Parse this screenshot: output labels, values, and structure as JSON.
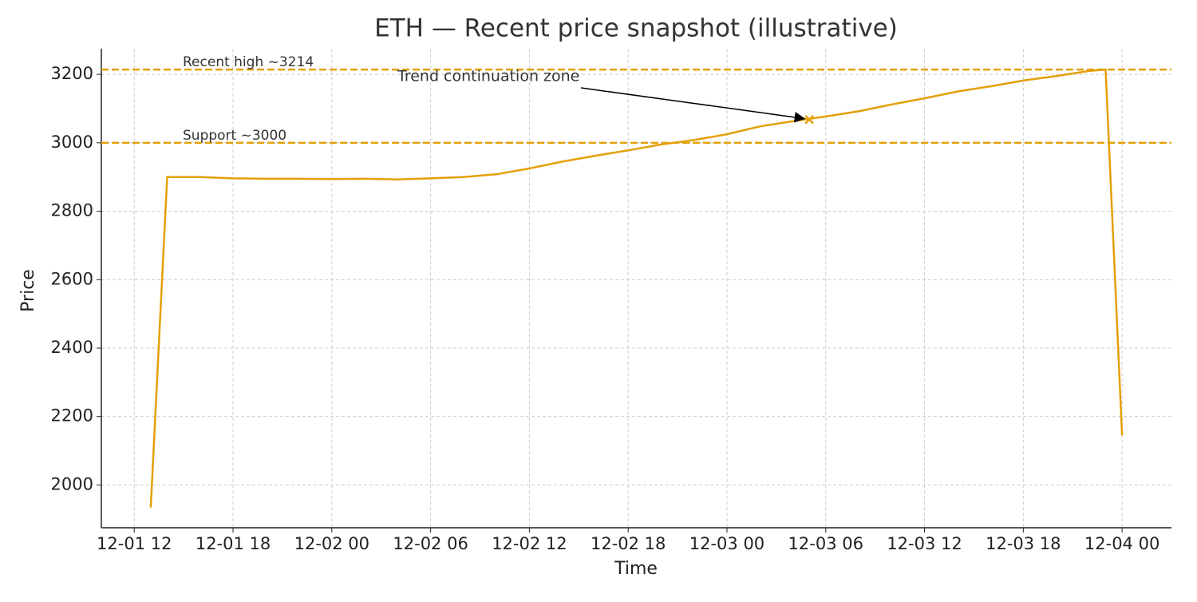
{
  "chart_data": {
    "type": "line",
    "title": "ETH — Recent price snapshot (illustrative)",
    "x_label": "Time",
    "y_label": "Price",
    "color": "#e3a008",
    "x": [
      "12-01 13",
      "12-01 14",
      "12-01 16",
      "12-01 18",
      "12-01 20",
      "12-01 22",
      "12-02 00",
      "12-02 02",
      "12-02 04",
      "12-02 06",
      "12-02 08",
      "12-02 10",
      "12-02 12",
      "12-02 14",
      "12-02 16",
      "12-02 18",
      "12-02 20",
      "12-02 22",
      "12-03 00",
      "12-03 02",
      "12-03 04",
      "12-03 06",
      "12-03 08",
      "12-03 10",
      "12-03 12",
      "12-03 14",
      "12-03 16",
      "12-03 18",
      "12-03 20",
      "12-03 22",
      "12-03 23",
      "12-04 00"
    ],
    "values": [
      1934,
      2900,
      2900,
      2896,
      2895,
      2895,
      2894,
      2895,
      2893,
      2896,
      2900,
      2908,
      2925,
      2945,
      2962,
      2978,
      2995,
      3008,
      3025,
      3048,
      3063,
      3077,
      3092,
      3112,
      3130,
      3150,
      3165,
      3182,
      3195,
      3210,
      3214,
      2145
    ],
    "xlim": [
      "12-01 10",
      "12-04 03"
    ],
    "xticks": [
      "12-01 12",
      "12-01 18",
      "12-02 00",
      "12-02 06",
      "12-02 12",
      "12-02 18",
      "12-03 00",
      "12-03 06",
      "12-03 12",
      "12-03 18",
      "12-04 00"
    ],
    "ylim": [
      1875,
      3275
    ],
    "yticks": [
      2000,
      2200,
      2400,
      2600,
      2800,
      3000,
      3200
    ],
    "grid": true,
    "hlines": [
      {
        "value": 3214,
        "label": "Recent high ~3214"
      },
      {
        "value": 3000,
        "label": "Support ~3000"
      }
    ],
    "annotation": {
      "text": "Trend continuation zone",
      "x": "12-03 05",
      "y": 3068
    }
  }
}
